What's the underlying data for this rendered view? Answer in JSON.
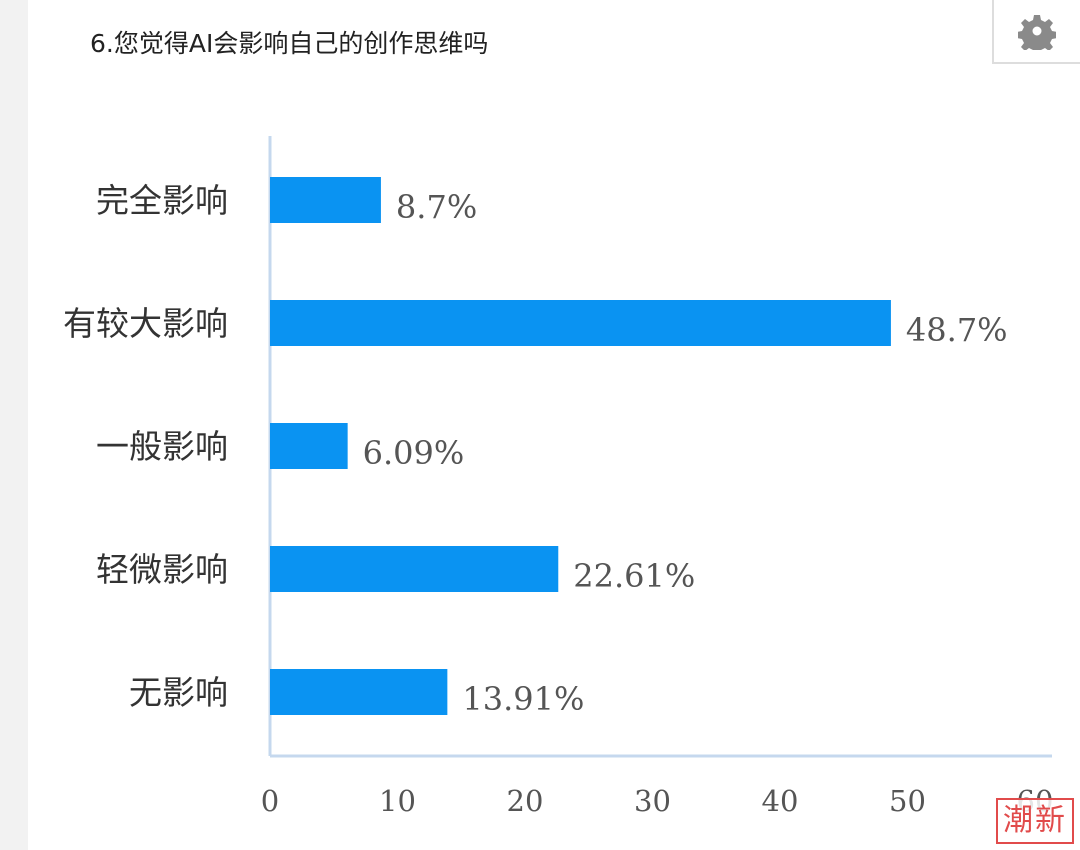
{
  "title": "6.您觉得AI会影响自己的创作思维吗",
  "settings": {
    "icon": "gear-icon"
  },
  "stamp": {
    "text": "潮新"
  },
  "chart_data": {
    "type": "bar",
    "orientation": "horizontal",
    "title": "6.您觉得AI会影响自己的创作思维吗",
    "categories": [
      "完全影响",
      "有较大影响",
      "一般影响",
      "轻微影响",
      "无影响"
    ],
    "values": [
      8.7,
      48.7,
      6.09,
      22.61,
      13.91
    ],
    "value_labels": [
      "8.7%",
      "48.7%",
      "6.09%",
      "22.61%",
      "13.91%"
    ],
    "xlim": [
      0,
      60
    ],
    "xticks": [
      "0",
      "10",
      "20",
      "30",
      "40",
      "50",
      "60"
    ],
    "bar_color": "#0a93f2",
    "axis_color": "#c5d8ee",
    "grid": false,
    "legend": "none"
  }
}
